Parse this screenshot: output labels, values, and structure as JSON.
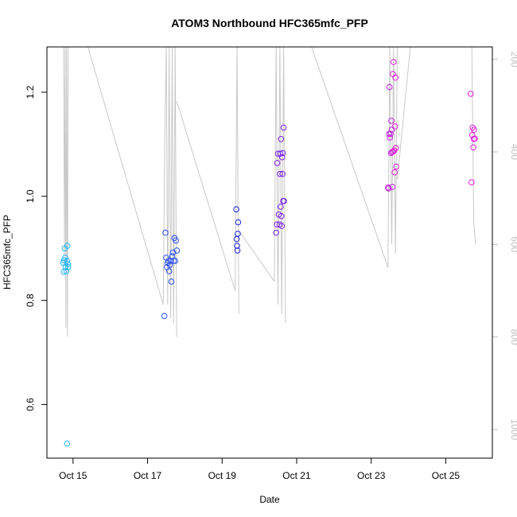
{
  "chart_data": {
    "type": "scatter",
    "title": "ATOM3 Northbound HFC365mfc_PFP",
    "xlabel": "Date",
    "ylabel": "HFC365mfc_PFP",
    "x_ticks": [
      "Oct 15",
      "Oct 17",
      "Oct 19",
      "Oct 21",
      "Oct 23",
      "Oct 25"
    ],
    "x_tick_values": [
      15,
      17,
      19,
      21,
      23,
      25
    ],
    "xlim": [
      14.3,
      26.25
    ],
    "ylim": [
      0.497,
      1.287
    ],
    "y_ticks": [
      0.6,
      0.8,
      1.0,
      1.2
    ],
    "y_tick_labels": [
      "0.6",
      "0.8",
      "1.0",
      "1.2"
    ],
    "y2_ticks": [
      200,
      400,
      600,
      800,
      1000
    ],
    "y2_tick_labels": [
      "200",
      "400",
      "600",
      "800",
      "1000"
    ],
    "y2lim": [
      1062,
      173
    ],
    "colors": {
      "profile": "#c8c8c8",
      "right_axis": "#bdbdbd",
      "flight1": "#1fb4ff",
      "flight2": "#2a4ef0",
      "flight3": "#1a22e0",
      "flight4": "#7a22e6",
      "flight5": "#c01ae0",
      "flight6": "#e21ad8"
    },
    "profile_series": [
      {
        "x": [
          14.75,
          14.77,
          14.79,
          14.81,
          14.83,
          14.85,
          14.87,
          14.89
        ],
        "y2": [
          173,
          625,
          173,
          780,
          173,
          800,
          173,
          173
        ]
      },
      {
        "x": [
          15.4,
          17.42
        ],
        "y2": [
          173,
          730
        ]
      },
      {
        "x": [
          17.42,
          17.46,
          17.5,
          17.54,
          17.58,
          17.62,
          17.66,
          17.7,
          17.74,
          17.78
        ],
        "y2": [
          730,
          380,
          173,
          730,
          173,
          760,
          173,
          770,
          173,
          800
        ]
      },
      {
        "x": [
          17.78,
          19.35
        ],
        "y2": [
          290,
          700
        ]
      },
      {
        "x": [
          19.35,
          19.4,
          19.45
        ],
        "y2": [
          700,
          173,
          750
        ]
      },
      {
        "x": [
          19.45,
          20.4
        ],
        "y2": [
          570,
          680
        ]
      },
      {
        "x": [
          20.4,
          20.45,
          20.5,
          20.55,
          20.6,
          20.65,
          20.7
        ],
        "y2": [
          680,
          173,
          730,
          173,
          750,
          173,
          770
        ]
      },
      {
        "x": [
          21.4,
          23.45
        ],
        "y2": [
          173,
          650
        ]
      },
      {
        "x": [
          23.45,
          23.5,
          23.55,
          23.6,
          23.65,
          23.7
        ],
        "y2": [
          650,
          173,
          600,
          173,
          620,
          173
        ]
      },
      {
        "x": [
          23.7,
          24.05
        ],
        "y2": [
          460,
          173
        ]
      },
      {
        "x": [
          25.1,
          25.7
        ],
        "y2": [
          173,
          173
        ]
      },
      {
        "x": [
          25.7,
          25.75,
          25.8
        ],
        "y2": [
          173,
          550,
          600
        ]
      }
    ],
    "series": [
      {
        "color": "flight1",
        "points": [
          [
            14.74,
            0.872
          ],
          [
            14.75,
            0.855
          ],
          [
            14.76,
            0.877
          ],
          [
            14.78,
            0.9
          ],
          [
            14.79,
            0.882
          ],
          [
            14.8,
            0.865
          ],
          [
            14.82,
            0.856
          ],
          [
            14.84,
            0.876
          ],
          [
            14.85,
            0.905
          ],
          [
            14.86,
            0.87
          ],
          [
            14.87,
            0.864
          ],
          [
            14.84,
            0.525
          ]
        ]
      },
      {
        "color": "flight2",
        "points": [
          [
            17.45,
            0.77
          ],
          [
            17.48,
            0.93
          ],
          [
            17.5,
            0.882
          ],
          [
            17.52,
            0.864
          ],
          [
            17.54,
            0.872
          ],
          [
            17.56,
            0.876
          ],
          [
            17.58,
            0.856
          ],
          [
            17.6,
            0.868
          ],
          [
            17.62,
            0.876
          ],
          [
            17.64,
            0.836
          ],
          [
            17.66,
            0.885
          ],
          [
            17.68,
            0.892
          ],
          [
            17.7,
            0.876
          ],
          [
            17.72,
            0.92
          ],
          [
            17.74,
            0.876
          ],
          [
            17.76,
            0.915
          ],
          [
            17.79,
            0.896
          ]
        ]
      },
      {
        "color": "flight3",
        "points": [
          [
            19.38,
            0.975
          ],
          [
            19.39,
            0.918
          ],
          [
            19.4,
            0.905
          ],
          [
            19.41,
            0.896
          ],
          [
            19.42,
            0.928
          ],
          [
            19.43,
            0.95
          ]
        ]
      },
      {
        "color": "flight4",
        "points": [
          [
            20.45,
            0.93
          ],
          [
            20.47,
            0.946
          ],
          [
            20.48,
            1.064
          ],
          [
            20.5,
            1.082
          ],
          [
            20.52,
            0.965
          ],
          [
            20.54,
            0.946
          ],
          [
            20.55,
            1.043
          ],
          [
            20.56,
            1.082
          ],
          [
            20.57,
            0.98
          ],
          [
            20.58,
            1.11
          ],
          [
            20.59,
            0.962
          ],
          [
            20.6,
            0.943
          ],
          [
            20.61,
            1.075
          ],
          [
            20.62,
            1.043
          ],
          [
            20.63,
            1.083
          ],
          [
            20.64,
            0.991
          ],
          [
            20.65,
            1.132
          ],
          [
            20.66,
            0.991
          ]
        ]
      },
      {
        "color": "flight5",
        "points": [
          [
            23.45,
            1.017
          ],
          [
            23.47,
            1.015
          ],
          [
            23.48,
            1.12
          ],
          [
            23.49,
            1.21
          ],
          [
            23.5,
            1.113
          ],
          [
            23.52,
            1.12
          ],
          [
            23.53,
            1.083
          ],
          [
            23.54,
            1.145
          ],
          [
            23.55,
            1.128
          ],
          [
            23.56,
            1.085
          ],
          [
            23.57,
            1.018
          ]
        ]
      },
      {
        "color": "flight6",
        "points": [
          [
            23.58,
            1.235
          ],
          [
            23.59,
            1.086
          ],
          [
            23.6,
            1.258
          ],
          [
            23.62,
            1.088
          ],
          [
            23.63,
            1.046
          ],
          [
            23.64,
            1.134
          ],
          [
            23.65,
            1.228
          ],
          [
            23.66,
            1.093
          ],
          [
            23.67,
            1.057
          ],
          [
            25.67,
            1.197
          ],
          [
            25.69,
            1.027
          ],
          [
            25.71,
            1.118
          ],
          [
            25.72,
            1.132
          ],
          [
            25.74,
            1.094
          ],
          [
            25.75,
            1.11
          ],
          [
            25.76,
            1.128
          ],
          [
            25.78,
            1.111
          ]
        ]
      }
    ]
  }
}
